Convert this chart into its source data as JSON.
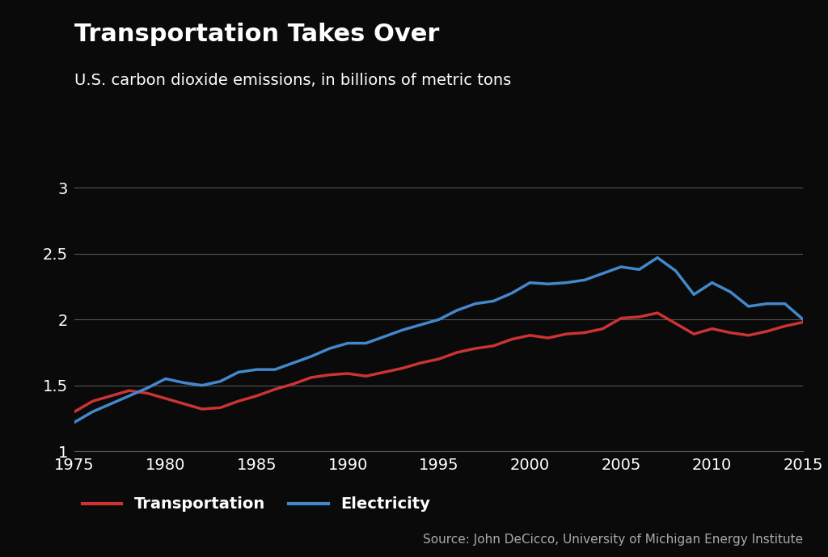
{
  "title": "Transportation Takes Over",
  "subtitle": "U.S. carbon dioxide emissions, in billions of metric tons",
  "source": "Source: John DeCicco, University of Michigan Energy Institute",
  "background_color": "#0a0a0a",
  "text_color": "#ffffff",
  "grid_color": "#555555",
  "transportation_color": "#cc3333",
  "electricity_color": "#4488cc",
  "xlim": [
    1975,
    2015
  ],
  "ylim": [
    1.0,
    3.2
  ],
  "yticks": [
    1.0,
    1.5,
    2.0,
    2.5,
    3.0
  ],
  "xticks": [
    1975,
    1980,
    1985,
    1990,
    1995,
    2000,
    2005,
    2010,
    2015
  ],
  "transportation_years": [
    1975,
    1976,
    1977,
    1978,
    1979,
    1980,
    1981,
    1982,
    1983,
    1984,
    1985,
    1986,
    1987,
    1988,
    1989,
    1990,
    1991,
    1992,
    1993,
    1994,
    1995,
    1996,
    1997,
    1998,
    1999,
    2000,
    2001,
    2002,
    2003,
    2004,
    2005,
    2006,
    2007,
    2008,
    2009,
    2010,
    2011,
    2012,
    2013,
    2014,
    2015
  ],
  "transportation_values": [
    1.3,
    1.38,
    1.42,
    1.46,
    1.44,
    1.4,
    1.36,
    1.32,
    1.33,
    1.38,
    1.42,
    1.47,
    1.51,
    1.56,
    1.58,
    1.59,
    1.57,
    1.6,
    1.63,
    1.67,
    1.7,
    1.75,
    1.78,
    1.8,
    1.85,
    1.88,
    1.86,
    1.89,
    1.9,
    1.93,
    2.01,
    2.02,
    2.05,
    1.97,
    1.89,
    1.93,
    1.9,
    1.88,
    1.91,
    1.95,
    1.98
  ],
  "electricity_years": [
    1975,
    1976,
    1977,
    1978,
    1979,
    1980,
    1981,
    1982,
    1983,
    1984,
    1985,
    1986,
    1987,
    1988,
    1989,
    1990,
    1991,
    1992,
    1993,
    1994,
    1995,
    1996,
    1997,
    1998,
    1999,
    2000,
    2001,
    2002,
    2003,
    2004,
    2005,
    2006,
    2007,
    2008,
    2009,
    2010,
    2011,
    2012,
    2013,
    2014,
    2015
  ],
  "electricity_values": [
    1.22,
    1.3,
    1.36,
    1.42,
    1.48,
    1.55,
    1.52,
    1.5,
    1.53,
    1.6,
    1.62,
    1.62,
    1.67,
    1.72,
    1.78,
    1.82,
    1.82,
    1.87,
    1.92,
    1.96,
    2.0,
    2.07,
    2.12,
    2.14,
    2.2,
    2.28,
    2.27,
    2.28,
    2.3,
    2.35,
    2.4,
    2.38,
    2.47,
    2.37,
    2.19,
    2.28,
    2.21,
    2.1,
    2.12,
    2.12,
    2.0
  ],
  "title_fontsize": 22,
  "subtitle_fontsize": 14,
  "tick_fontsize": 14,
  "legend_fontsize": 14,
  "source_fontsize": 11,
  "line_width": 2.5
}
